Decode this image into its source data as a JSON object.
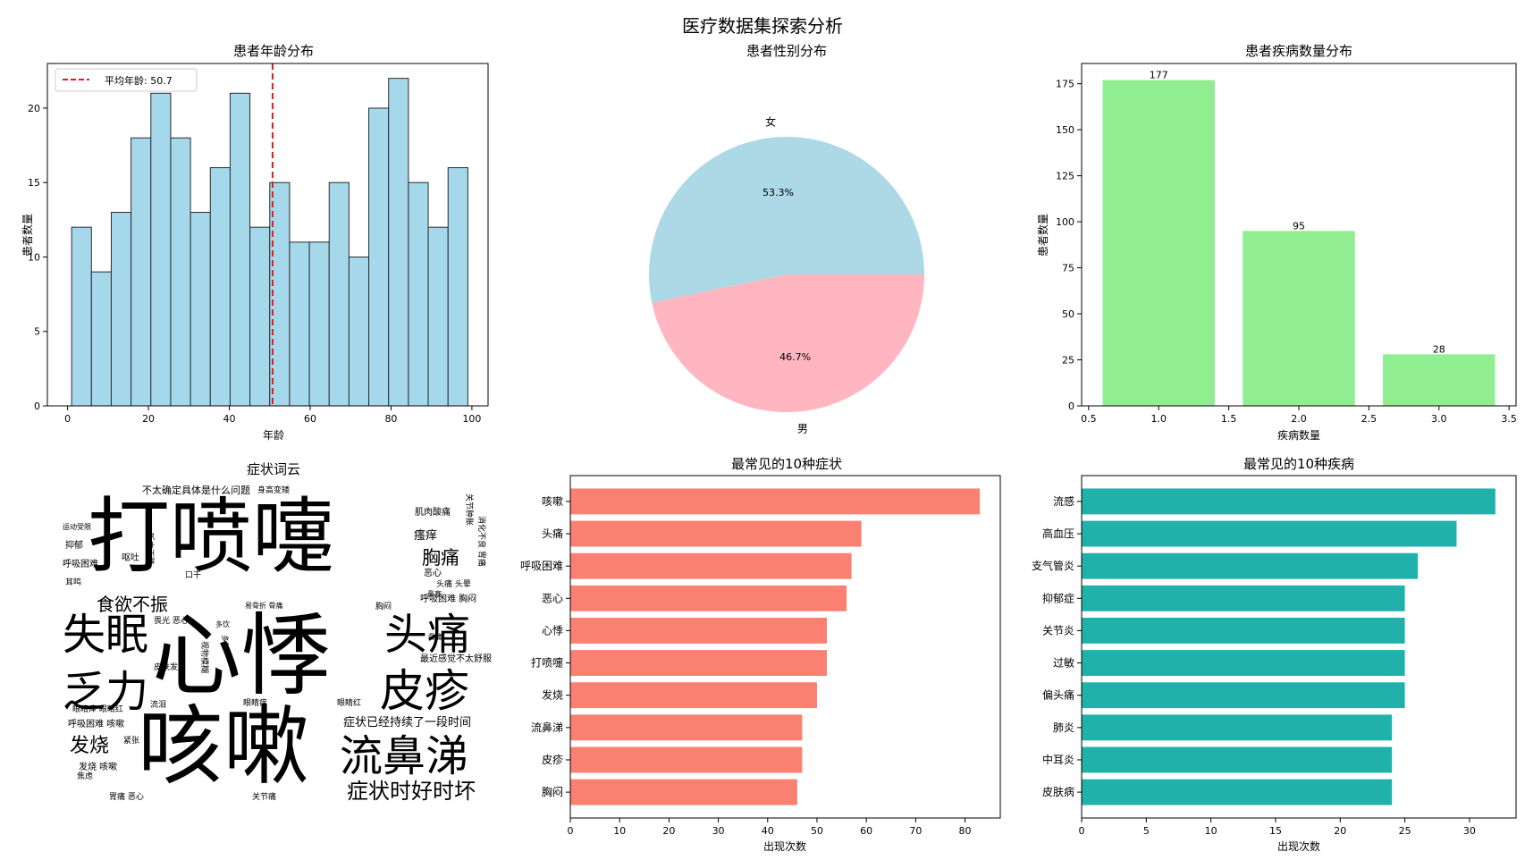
{
  "figure": {
    "title": "医疗数据集探索分析"
  },
  "chart_data": [
    {
      "type": "bar",
      "subtype": "histogram",
      "title": "患者年龄分布",
      "xlabel": "年龄",
      "ylabel": "患者数量",
      "bins": [
        {
          "x0": 1,
          "x1": 5.9,
          "count": 12
        },
        {
          "x0": 5.9,
          "x1": 10.8,
          "count": 9
        },
        {
          "x0": 10.8,
          "x1": 15.7,
          "count": 13
        },
        {
          "x0": 15.7,
          "x1": 20.6,
          "count": 18
        },
        {
          "x0": 20.6,
          "x1": 25.5,
          "count": 21
        },
        {
          "x0": 25.5,
          "x1": 30.4,
          "count": 18
        },
        {
          "x0": 30.4,
          "x1": 35.3,
          "count": 13
        },
        {
          "x0": 35.3,
          "x1": 40.2,
          "count": 16
        },
        {
          "x0": 40.2,
          "x1": 45.1,
          "count": 21
        },
        {
          "x0": 45.1,
          "x1": 50.0,
          "count": 12
        },
        {
          "x0": 50.0,
          "x1": 54.9,
          "count": 15
        },
        {
          "x0": 54.9,
          "x1": 59.8,
          "count": 11
        },
        {
          "x0": 59.8,
          "x1": 64.7,
          "count": 11
        },
        {
          "x0": 64.7,
          "x1": 69.6,
          "count": 15
        },
        {
          "x0": 69.6,
          "x1": 74.5,
          "count": 10
        },
        {
          "x0": 74.5,
          "x1": 79.4,
          "count": 20
        },
        {
          "x0": 79.4,
          "x1": 84.3,
          "count": 22
        },
        {
          "x0": 84.3,
          "x1": 89.2,
          "count": 15
        },
        {
          "x0": 89.2,
          "x1": 94.1,
          "count": 12
        },
        {
          "x0": 94.1,
          "x1": 99.0,
          "count": 16
        }
      ],
      "mean_line": {
        "value": 50.7,
        "label": "平均年龄: 50.7",
        "color": "#e31a1c"
      },
      "xlim": [
        -5,
        104
      ],
      "ylim": [
        0,
        23
      ],
      "xticks": [
        0,
        20,
        40,
        60,
        80,
        100
      ],
      "yticks": [
        0,
        5,
        10,
        15,
        20
      ],
      "bar_color": "#a6d8ec",
      "legend": "top-left"
    },
    {
      "type": "pie",
      "title": "患者性别分布",
      "slices": [
        {
          "label": "女",
          "value": 53.3,
          "pct_label": "53.3%",
          "color": "#add8e6"
        },
        {
          "label": "男",
          "value": 46.7,
          "pct_label": "46.7%",
          "color": "#ffb6c1"
        }
      ]
    },
    {
      "type": "bar",
      "title": "患者疾病数量分布",
      "xlabel": "疾病数量",
      "ylabel": "患者数量",
      "x": [
        1,
        2,
        3
      ],
      "values": [
        177,
        95,
        28
      ],
      "value_labels": [
        "177",
        "95",
        "28"
      ],
      "xlim": [
        0.45,
        3.55
      ],
      "ylim": [
        0,
        186
      ],
      "xticks": [
        "0.5",
        "1.0",
        "1.5",
        "2.0",
        "2.5",
        "3.0",
        "3.5"
      ],
      "yticks": [
        0,
        25,
        50,
        75,
        100,
        125,
        150,
        175
      ],
      "bar_color": "#90ee90"
    },
    {
      "type": "wordcloud",
      "title": "症状词云",
      "words": [
        {
          "text": "打喷嚏",
          "color": "#bddf26"
        },
        {
          "text": "心悸",
          "color": "#2a788e"
        },
        {
          "text": "咳嗽",
          "color": "#3b528b"
        },
        {
          "text": "失眠",
          "color": "#21918c"
        },
        {
          "text": "头痛",
          "color": "#7ad151"
        },
        {
          "text": "皮疹",
          "color": "#482878"
        },
        {
          "text": "流鼻涕",
          "color": "#31688e"
        },
        {
          "text": "乏力",
          "color": "#fde725"
        },
        {
          "text": "症状时好时坏",
          "color": "#443983"
        },
        {
          "text": "食欲不振",
          "color": "#5ec962"
        },
        {
          "text": "发烧",
          "color": "#22a884"
        },
        {
          "text": "胸痛",
          "color": "#3e4a89"
        },
        {
          "text": "症状已经持续了一段时间",
          "color": "#a0da39"
        },
        {
          "text": "瘙痒",
          "color": "#287d8e"
        },
        {
          "text": "不太确定具体是什么问题",
          "color": "#46327e"
        },
        {
          "text": "最近感觉不太舒服",
          "color": "#472d7b"
        },
        {
          "text": "肌肉酸痛",
          "color": "#95d840"
        },
        {
          "text": "鼻塞",
          "color": "#ffd700"
        },
        {
          "text": "恶心",
          "color": "#414487"
        },
        {
          "text": "呼吸困难",
          "color": "#355f8d"
        },
        {
          "text": "呼吸困难 胸闷",
          "color": "#440154"
        },
        {
          "text": "发烧 咳嗽",
          "color": "#3b528b"
        },
        {
          "text": "运动受限",
          "color": "#fde725"
        },
        {
          "text": "抑郁",
          "color": "#31688e"
        },
        {
          "text": "呕吐",
          "color": "#482677"
        },
        {
          "text": "听力下降",
          "color": "#26828e"
        },
        {
          "text": "关节肿胀",
          "color": "#2db27d"
        },
        {
          "text": "消化不良 胃痛",
          "color": "#52c569"
        },
        {
          "text": "身高变矮",
          "color": "#443a83"
        },
        {
          "text": "耳鸣",
          "color": "#22a884"
        },
        {
          "text": "口干",
          "color": "#1f9e89"
        },
        {
          "text": "头痛 头晕",
          "color": "#addc30"
        },
        {
          "text": "易骨折 骨痛",
          "color": "#3f4788"
        },
        {
          "text": "畏光 恶心",
          "color": "#453781"
        },
        {
          "text": "多饮",
          "color": "#6ece58"
        },
        {
          "text": "多尿",
          "color": "#20a386"
        },
        {
          "text": "视物模糊",
          "color": "#25838e"
        },
        {
          "text": "胸闷",
          "color": "#414487"
        },
        {
          "text": "皮肤发红",
          "color": "#3f4889"
        },
        {
          "text": "眼睛痒 眼睛红",
          "color": "#404588"
        },
        {
          "text": "流泪",
          "color": "#2c728e"
        },
        {
          "text": "眼睛痒",
          "color": "#6ccd5a"
        },
        {
          "text": "眼睛红",
          "color": "#d8e219"
        },
        {
          "text": "呼吸困难 咳嗽",
          "color": "#33638d"
        },
        {
          "text": "紧张",
          "color": "#1fa187"
        },
        {
          "text": "焦虑",
          "color": "#3dbc74"
        },
        {
          "text": "胃痛 恶心",
          "color": "#38598c"
        },
        {
          "text": "关节痛",
          "color": "#440154"
        },
        {
          "text": "骨痛",
          "color": "#277f8e"
        }
      ]
    },
    {
      "type": "bar",
      "orientation": "horizontal",
      "title": "最常见的10种症状",
      "xlabel": "出现次数",
      "categories": [
        "咳嗽",
        "头痛",
        "呼吸困难",
        "恶心",
        "心悸",
        "打喷嚏",
        "发烧",
        "流鼻涕",
        "皮疹",
        "胸闷"
      ],
      "values": [
        83,
        59,
        57,
        56,
        52,
        52,
        50,
        47,
        47,
        46
      ],
      "xlim": [
        0,
        87.15
      ],
      "xticks": [
        0,
        10,
        20,
        30,
        40,
        50,
        60,
        70,
        80
      ],
      "bar_color": "#fa8072"
    },
    {
      "type": "bar",
      "orientation": "horizontal",
      "title": "最常见的10种疾病",
      "xlabel": "出现次数",
      "categories": [
        "流感",
        "高血压",
        "支气管炎",
        "抑郁症",
        "关节炎",
        "过敏",
        "偏头痛",
        "肺炎",
        "中耳炎",
        "皮肤病"
      ],
      "values": [
        32,
        29,
        26,
        25,
        25,
        25,
        25,
        24,
        24,
        24
      ],
      "xlim": [
        0,
        33.6
      ],
      "xticks": [
        0,
        5,
        10,
        15,
        20,
        25,
        30
      ],
      "bar_color": "#20b2aa"
    }
  ]
}
